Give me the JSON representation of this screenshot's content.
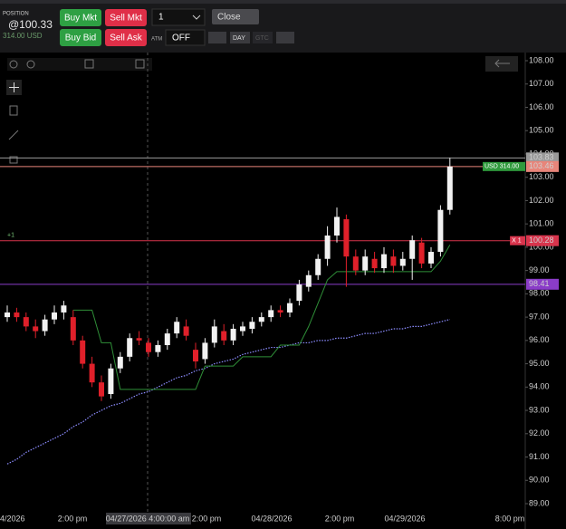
{
  "toolbar": {
    "position_label": "POSITION",
    "position_price": "@100.33",
    "position_value": "314.00 USD",
    "buy_mkt": "Buy Mkt",
    "sell_mkt": "Sell Mkt",
    "quantity": "1",
    "close": "Close",
    "buy_bid": "Buy Bid",
    "sell_ask": "Sell Ask",
    "atm_label": "ATM",
    "atm_value": "OFF",
    "tif_day": "DAY",
    "tif_gtc": "GTC"
  },
  "chart_data": {
    "type": "candlestick",
    "up_color": "#f2f2f2",
    "down_color": "#e0202a",
    "ohlc": [
      [
        97.0,
        97.5,
        96.8,
        97.2
      ],
      [
        97.2,
        97.4,
        96.8,
        97.0
      ],
      [
        97.0,
        97.2,
        96.4,
        96.6
      ],
      [
        96.6,
        96.9,
        96.1,
        96.4
      ],
      [
        96.4,
        97.1,
        96.2,
        96.9
      ],
      [
        96.9,
        97.5,
        96.7,
        97.2
      ],
      [
        97.2,
        97.7,
        96.9,
        97.5
      ],
      [
        97.0,
        97.3,
        95.8,
        96.0
      ],
      [
        96.0,
        96.2,
        94.8,
        95.0
      ],
      [
        95.0,
        95.3,
        94.0,
        94.2
      ],
      [
        94.2,
        94.5,
        93.4,
        93.6
      ],
      [
        93.7,
        95.0,
        93.5,
        94.8
      ],
      [
        94.8,
        95.5,
        94.6,
        95.3
      ],
      [
        95.3,
        96.3,
        95.1,
        96.1
      ],
      [
        96.1,
        96.4,
        95.8,
        96.0
      ],
      [
        95.9,
        96.1,
        95.3,
        95.5
      ],
      [
        95.5,
        96.0,
        95.3,
        95.8
      ],
      [
        95.8,
        96.5,
        95.6,
        96.3
      ],
      [
        96.3,
        97.0,
        96.1,
        96.8
      ],
      [
        96.6,
        96.9,
        96.0,
        96.2
      ],
      [
        95.6,
        95.9,
        94.8,
        95.1
      ],
      [
        95.2,
        96.1,
        95.0,
        95.9
      ],
      [
        95.9,
        96.9,
        95.7,
        96.6
      ],
      [
        96.4,
        96.7,
        95.8,
        96.0
      ],
      [
        96.0,
        96.7,
        95.8,
        96.5
      ],
      [
        96.4,
        96.8,
        96.2,
        96.6
      ],
      [
        96.5,
        97.0,
        96.3,
        96.8
      ],
      [
        96.8,
        97.2,
        96.6,
        97.0
      ],
      [
        97.0,
        97.5,
        96.8,
        97.3
      ],
      [
        97.3,
        97.5,
        97.0,
        97.2
      ],
      [
        97.2,
        97.8,
        97.0,
        97.6
      ],
      [
        97.7,
        98.6,
        97.5,
        98.4
      ],
      [
        98.3,
        99.0,
        98.1,
        98.8
      ],
      [
        98.8,
        99.7,
        98.6,
        99.5
      ],
      [
        99.5,
        100.9,
        99.2,
        100.5
      ],
      [
        100.5,
        101.7,
        100.2,
        101.3
      ],
      [
        101.2,
        101.4,
        98.3,
        99.6
      ],
      [
        99.6,
        99.9,
        98.8,
        99.0
      ],
      [
        99.0,
        99.9,
        98.8,
        99.6
      ],
      [
        99.5,
        99.8,
        98.9,
        99.1
      ],
      [
        99.1,
        100.0,
        98.9,
        99.7
      ],
      [
        99.6,
        99.9,
        98.9,
        99.2
      ],
      [
        99.2,
        99.8,
        99.0,
        99.5
      ],
      [
        99.5,
        100.5,
        98.6,
        100.3
      ],
      [
        100.2,
        100.4,
        99.1,
        99.3
      ],
      [
        99.3,
        100.0,
        99.1,
        99.8
      ],
      [
        99.8,
        101.8,
        99.6,
        101.6
      ],
      [
        101.6,
        103.83,
        101.4,
        103.46
      ]
    ],
    "ylim": [
      88.65,
      108.35
    ],
    "yticks": [
      {
        "value": 89,
        "label": "89.00"
      },
      {
        "value": 90,
        "label": "90.00"
      },
      {
        "value": 91,
        "label": "91.00"
      },
      {
        "value": 92,
        "label": "92.00"
      },
      {
        "value": 93,
        "label": "93.00"
      },
      {
        "value": 94,
        "label": "94.00"
      },
      {
        "value": 95,
        "label": "95.00"
      },
      {
        "value": 96,
        "label": "96.00"
      },
      {
        "value": 97,
        "label": "97.00"
      },
      {
        "value": 98,
        "label": "98.00"
      },
      {
        "value": 99,
        "label": "99.00"
      },
      {
        "value": 100,
        "label": "100.00"
      },
      {
        "value": 101,
        "label": "101.00"
      },
      {
        "value": 102,
        "label": "102.00"
      },
      {
        "value": 103,
        "label": "103.00"
      },
      {
        "value": 104,
        "label": "104.00"
      },
      {
        "value": 105,
        "label": "105.00"
      },
      {
        "value": 106,
        "label": "106.00"
      },
      {
        "value": 107,
        "label": "107.00"
      },
      {
        "value": 108,
        "label": "108.00"
      }
    ],
    "x_labels": [
      "4/2026",
      "2:00 pm",
      "04/27/2026 4:00:00 am",
      "2:00 pm",
      "04/28/2026",
      "2:00 pm",
      "04/29/2026",
      "8:00 pm"
    ],
    "levels": [
      {
        "value": 103.83,
        "color": "#9a9a9a"
      },
      {
        "value": 103.46,
        "color": "#e8857a",
        "tag": "USD 314.00",
        "tag_color": "#2f9a3c"
      },
      {
        "value": 100.28,
        "color": "#d8344c",
        "tag": "X 1",
        "tag_color": "#d8344c",
        "left_tag": "+1"
      },
      {
        "value": 98.41,
        "color": "#8a3cc8"
      }
    ],
    "stop_line": {
      "color": "#2f8f38",
      "values": [
        null,
        null,
        null,
        null,
        null,
        null,
        null,
        97.3,
        97.3,
        97.3,
        95.9,
        95.9,
        93.9,
        93.9,
        93.9,
        93.9,
        93.9,
        93.9,
        93.9,
        93.9,
        93.9,
        94.9,
        94.9,
        94.9,
        94.9,
        95.3,
        95.3,
        95.3,
        95.3,
        95.8,
        95.8,
        95.8,
        96.6,
        97.6,
        98.6,
        98.95,
        98.95,
        98.95,
        98.95,
        98.95,
        98.95,
        98.95,
        98.95,
        98.95,
        98.95,
        98.95,
        99.4,
        100.1
      ]
    },
    "moving_average": {
      "color": "#8c8cff",
      "values": [
        90.7,
        90.9,
        91.2,
        91.4,
        91.6,
        91.8,
        92.0,
        92.3,
        92.5,
        92.8,
        93.0,
        93.2,
        93.3,
        93.5,
        93.7,
        93.8,
        94.0,
        94.2,
        94.4,
        94.5,
        94.7,
        94.8,
        95.0,
        95.1,
        95.2,
        95.4,
        95.5,
        95.6,
        95.7,
        95.7,
        95.8,
        95.9,
        95.9,
        96.0,
        96.0,
        96.1,
        96.1,
        96.2,
        96.3,
        96.3,
        96.4,
        96.5,
        96.5,
        96.6,
        96.6,
        96.7,
        96.8,
        96.9
      ]
    }
  }
}
